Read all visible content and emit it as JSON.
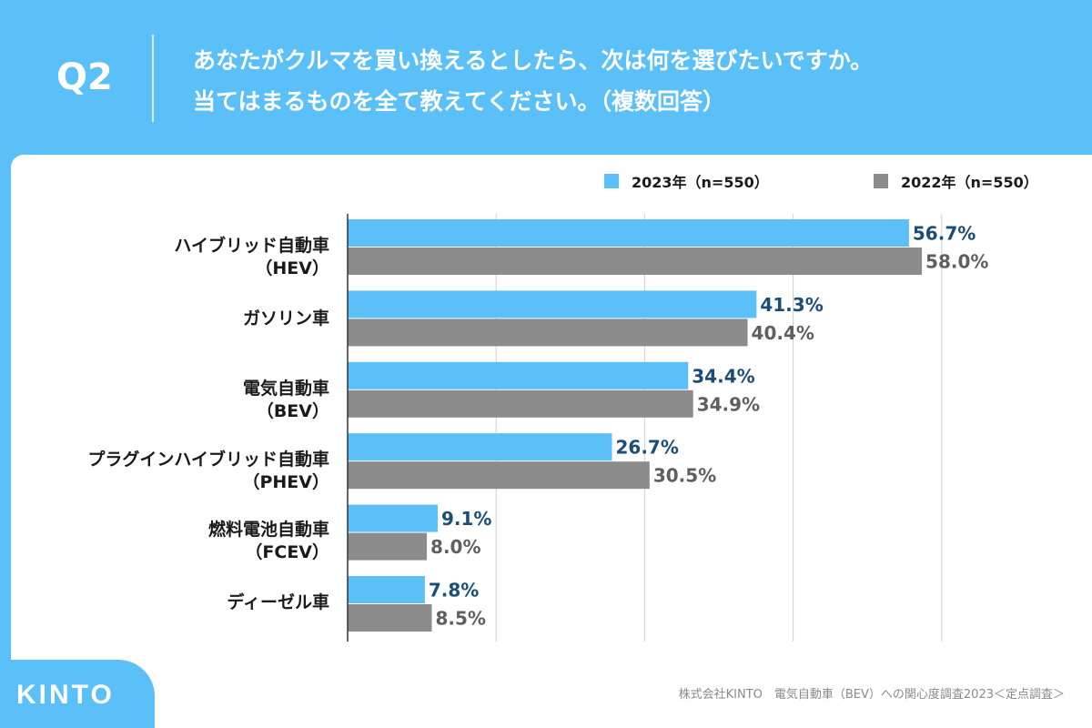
{
  "header": {
    "q_number": "Q2",
    "question_line1": "あなたがクルマを買い換えるとしたら、次は何を選びたいですか。",
    "question_line2": "当てはまるものを全て教えてください。（複数回答）"
  },
  "colors": {
    "accent": "#5bc0f8",
    "series_2023": "#5bc0f8",
    "series_2022": "#8c8c8c",
    "label_2023": "#1a4d78",
    "label_2022": "#5f5f5f"
  },
  "legend": {
    "item_2023": "2023年（n=550）",
    "item_2022": "2022年（n=550）"
  },
  "categories": [
    {
      "line1": "ハイブリッド自動車",
      "line2": "（HEV）"
    },
    {
      "line1": "ガソリン車",
      "line2": ""
    },
    {
      "line1": "電気自動車",
      "line2": "（BEV）"
    },
    {
      "line1": "プラグインハイブリッド自動車",
      "line2": "（PHEV）"
    },
    {
      "line1": "燃料電池自動車",
      "line2": "（FCEV）"
    },
    {
      "line1": "ディーゼル車",
      "line2": ""
    }
  ],
  "chart_data": {
    "type": "bar",
    "orientation": "horizontal",
    "categories": [
      "ハイブリッド自動車（HEV）",
      "ガソリン車",
      "電気自動車（BEV）",
      "プラグインハイブリッド自動車（PHEV）",
      "燃料電池自動車（FCEV）",
      "ディーゼル車"
    ],
    "series": [
      {
        "name": "2023年（n=550）",
        "values": [
          56.7,
          41.3,
          34.4,
          26.7,
          9.1,
          7.8
        ],
        "labels": [
          "56.7%",
          "41.3%",
          "34.4%",
          "26.7%",
          "9.1%",
          "7.8%"
        ]
      },
      {
        "name": "2022年（n=550）",
        "values": [
          58.0,
          40.4,
          34.9,
          30.5,
          8.0,
          8.5
        ],
        "labels": [
          "58.0%",
          "40.4%",
          "34.9%",
          "30.5%",
          "8.0%",
          "8.5%"
        ]
      }
    ],
    "xlim": [
      0,
      60
    ],
    "grid": true,
    "legend": "top-right"
  },
  "footer": {
    "logo": "KINTO",
    "source": "株式会社KINTO　電気自動車（BEV）への関心度調査2023＜定点調査＞"
  }
}
